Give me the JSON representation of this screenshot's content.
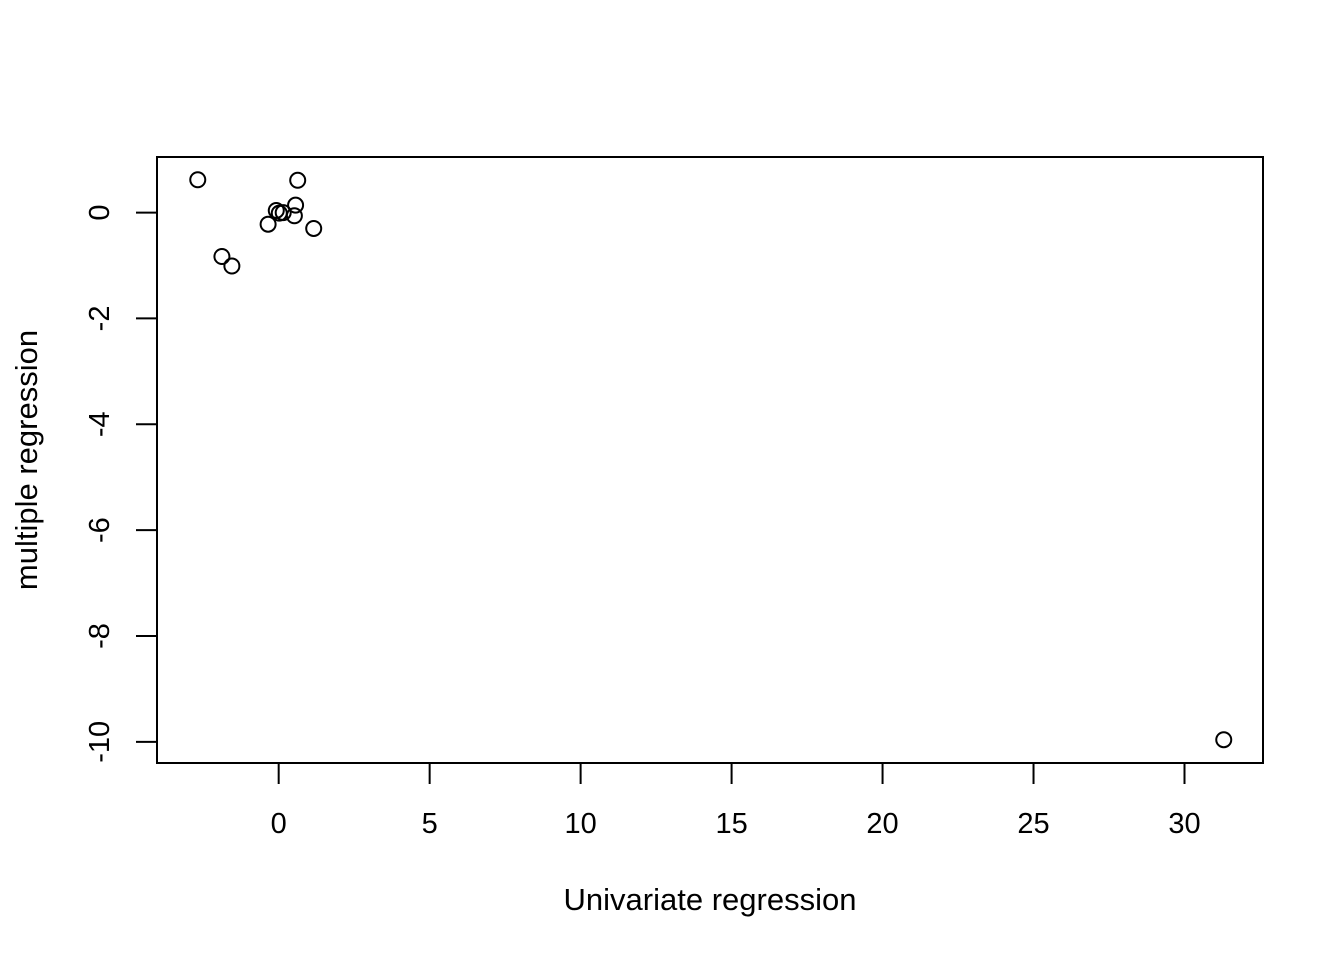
{
  "chart_data": {
    "type": "scatter",
    "title": "",
    "xlabel": "Univariate regression",
    "ylabel": "multiple regression",
    "xlim": [
      -4.03,
      32.6
    ],
    "ylim": [
      -10.4,
      1.05
    ],
    "x_ticks": [
      0,
      5,
      10,
      15,
      20,
      25,
      30
    ],
    "x_tick_labels": [
      "0",
      "5",
      "10",
      "15",
      "20",
      "25",
      "30"
    ],
    "y_ticks": [
      0,
      -2,
      -4,
      -6,
      -8,
      -10
    ],
    "y_tick_labels": [
      "0",
      "-2",
      "-4",
      "-6",
      "-8",
      "-10"
    ],
    "grid": false,
    "legend": false,
    "marker": "open-circle",
    "color": "#000000",
    "points": [
      {
        "x": -2.68,
        "y": 0.62
      },
      {
        "x": -1.88,
        "y": -0.83
      },
      {
        "x": -1.55,
        "y": -1.01
      },
      {
        "x": -0.35,
        "y": -0.22
      },
      {
        "x": -0.08,
        "y": 0.04
      },
      {
        "x": 0.02,
        "y": -0.01
      },
      {
        "x": 0.15,
        "y": 0.0
      },
      {
        "x": 0.52,
        "y": -0.06
      },
      {
        "x": 0.56,
        "y": 0.14
      },
      {
        "x": 0.63,
        "y": 0.61
      },
      {
        "x": 1.16,
        "y": -0.3
      },
      {
        "x": 31.3,
        "y": -9.96
      }
    ]
  }
}
